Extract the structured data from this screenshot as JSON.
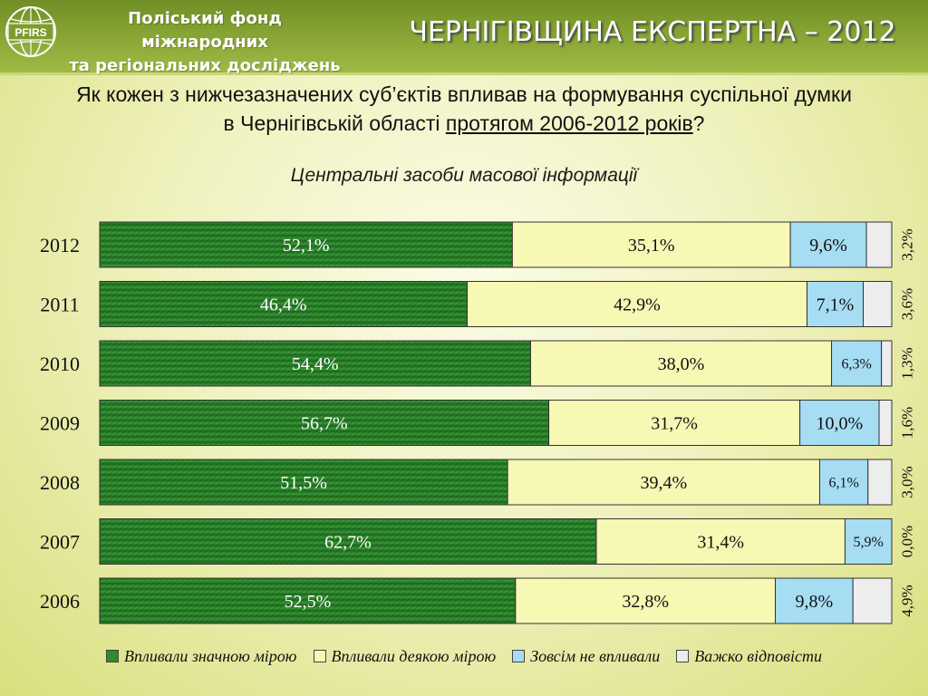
{
  "header": {
    "org_line1": "Поліський фонд міжнародних",
    "org_line2": "та регіональних досліджень",
    "logo_text": "PFIRS",
    "title": "ЧЕРНІГІВЩИНА ЕКСПЕРТНА – 2012"
  },
  "question": {
    "line1": "Як кожен з нижчезазначених суб’єктів впливав на формування суспільної думки",
    "line2_prefix": "в Чернігівській області ",
    "line2_underlined": "протягом 2006-2012 років",
    "line2_suffix": "?"
  },
  "colors": {
    "significant": "#2e8b2e",
    "some": "#f6f8b4",
    "none": "#a6ddf3",
    "hard": "#ededed"
  },
  "chart_data": {
    "type": "bar",
    "orientation": "horizontal",
    "stacked": true,
    "title": "Центральні засоби масової інформації",
    "categories": [
      "2012",
      "2011",
      "2010",
      "2009",
      "2008",
      "2007",
      "2006"
    ],
    "series": [
      {
        "name": "Впливали значною мірою",
        "values": [
          52.1,
          46.4,
          54.4,
          56.7,
          51.5,
          62.7,
          52.5
        ],
        "labels": [
          "52,1%",
          "46,4%",
          "54,4%",
          "56,7%",
          "51,5%",
          "62,7%",
          "52,5%"
        ]
      },
      {
        "name": "Впливали деякою мірою",
        "values": [
          35.1,
          42.9,
          38.0,
          31.7,
          39.4,
          31.4,
          32.8
        ],
        "labels": [
          "35,1%",
          "42,9%",
          "38,0%",
          "31,7%",
          "39,4%",
          "31,4%",
          "32,8%"
        ]
      },
      {
        "name": "Зовсім не впливали",
        "values": [
          9.6,
          7.1,
          6.3,
          10.0,
          6.1,
          5.9,
          9.8
        ],
        "labels": [
          "9,6%",
          "7,1%",
          "6,3%",
          "10,0%",
          "6,1%",
          "5,9%",
          "9,8%"
        ]
      },
      {
        "name": "Важко відповісти",
        "values": [
          3.2,
          3.6,
          1.3,
          1.6,
          3.0,
          0.0,
          4.9
        ],
        "labels": [
          "3,2%",
          "3,6%",
          "1,3%",
          "1,6%",
          "3,0%",
          "0,0%",
          "4,9%"
        ]
      }
    ],
    "xlim": [
      0,
      100
    ],
    "legend_position": "bottom"
  }
}
